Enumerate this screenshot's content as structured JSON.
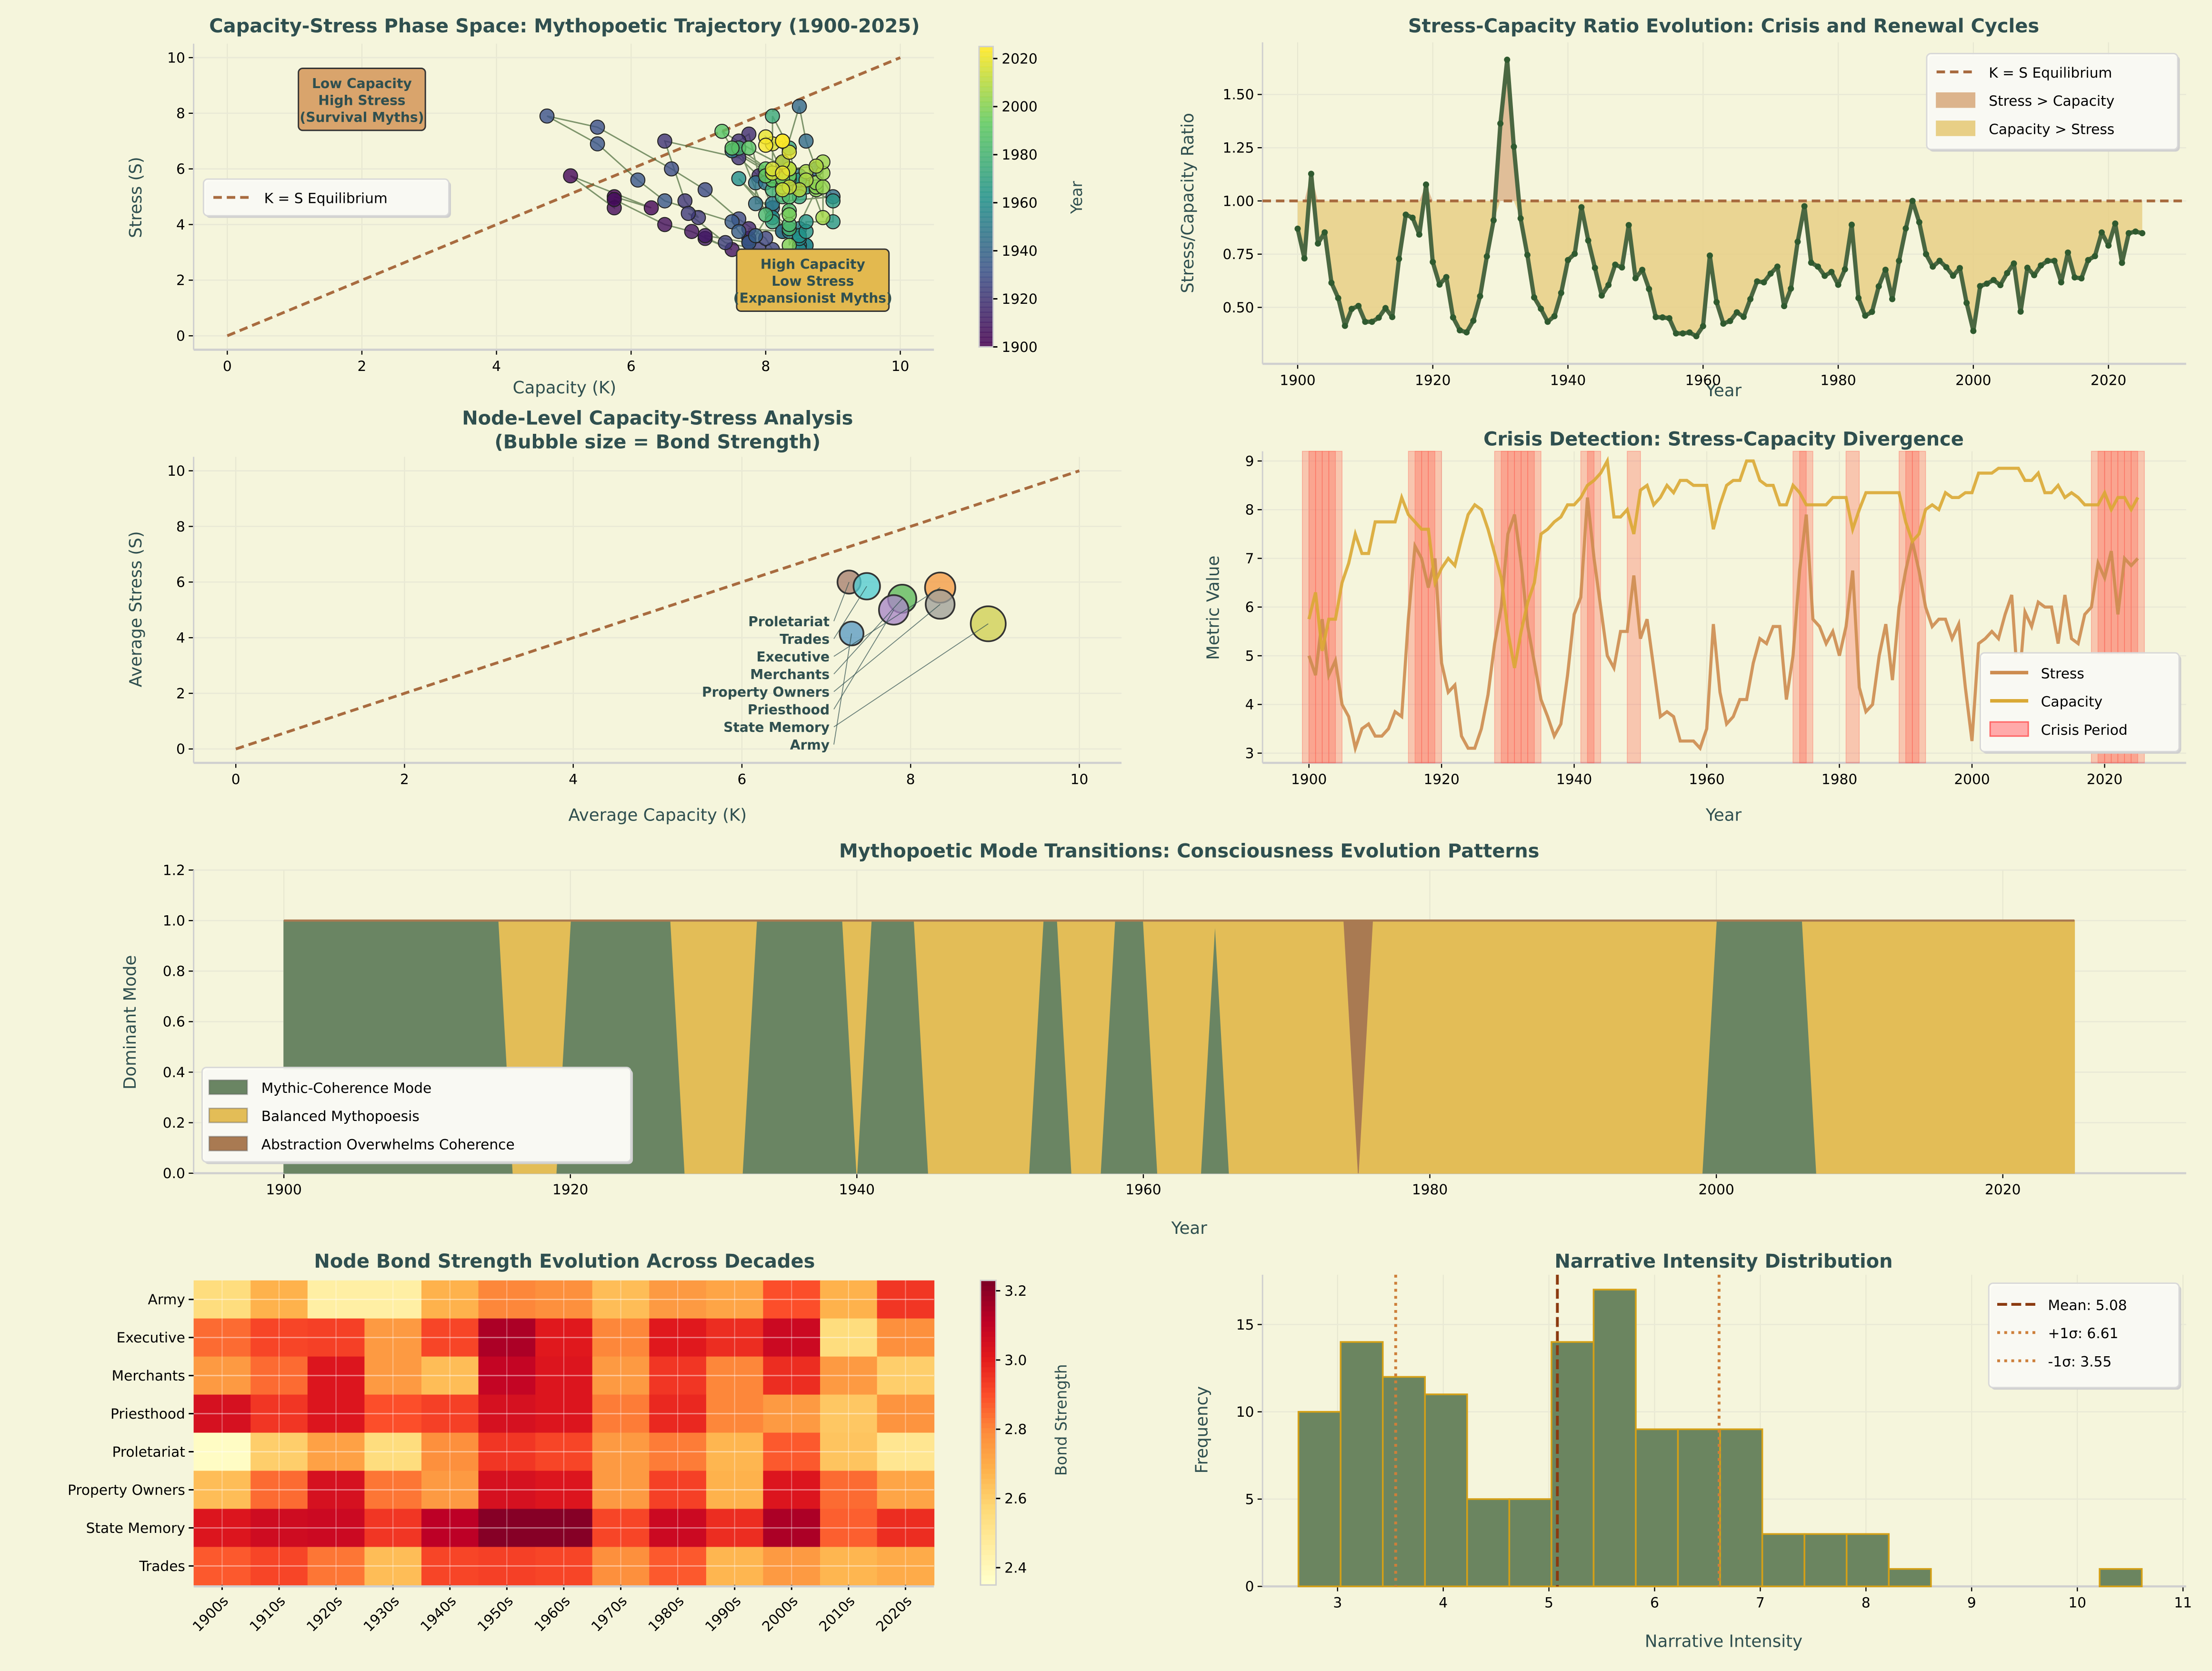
{
  "figure": {
    "background": "#f5f5dc",
    "title_color": "#2f4f4f"
  },
  "chart_data": [
    {
      "id": "phase",
      "type": "scatter",
      "title": "Capacity-Stress Phase Space: Mythopoetic Trajectory (1900-2025)",
      "xlabel": "Capacity (K)",
      "ylabel": "Stress (S)",
      "xlim": [
        -0.5,
        10.5
      ],
      "ylim": [
        -0.5,
        10.5
      ],
      "xticks": [
        0,
        2,
        4,
        6,
        8,
        10
      ],
      "yticks": [
        0,
        2,
        4,
        6,
        8,
        10
      ],
      "grid": true,
      "colorbar": {
        "label": "Year",
        "colormap": "viridis",
        "range": [
          1900,
          2025
        ],
        "ticks": [
          1900,
          1920,
          1940,
          1960,
          1980,
          2000,
          2020
        ]
      },
      "legend": {
        "placement": "center-left",
        "entries": [
          "K = S Equilibrium"
        ]
      },
      "annotations": [
        {
          "lines": [
            "Low Capacity",
            "High Stress",
            "(Survival Myths)"
          ],
          "x": 2,
          "y": 8.5,
          "color": "#d9a46c"
        },
        {
          "lines": [
            "High Capacity",
            "Low Stress",
            "(Expansionist Myths)"
          ],
          "x": 8.7,
          "y": 2,
          "color": "#e3b94f"
        }
      ],
      "equilibrium_line": {
        "x": [
          0,
          10
        ],
        "y": [
          0,
          10
        ],
        "color": "#a86b3f"
      },
      "year_start": 1900,
      "capacity": [
        5.75,
        6.3,
        5.1,
        5.75,
        5.75,
        6.5,
        6.9,
        7.5,
        7.1,
        7.1,
        7.75,
        7.75,
        7.75,
        7.75,
        8.25,
        7.9,
        7.75,
        7.6,
        7.6,
        6.5,
        6.8,
        7.0,
        6.85,
        7.4,
        7.9,
        8.1,
        8.0,
        7.6,
        7.1,
        6.6,
        5.5,
        4.75,
        5.5,
        6.1,
        6.5,
        7.5,
        7.6,
        7.75,
        7.85,
        8.1,
        8.1,
        8.25,
        8.5,
        8.6,
        8.75,
        9.0,
        7.85,
        7.85,
        8.0,
        7.5,
        8.4,
        8.5,
        8.1,
        8.25,
        8.5,
        8.35,
        8.6,
        8.6,
        8.5,
        8.5,
        8.5,
        7.6,
        8.1,
        8.5,
        8.6,
        8.6,
        9.0,
        9.0,
        8.6,
        8.5,
        8.5,
        8.1,
        8.1,
        8.5,
        8.35,
        8.1,
        8.1,
        8.1,
        8.1,
        8.25,
        8.25,
        8.25,
        7.6,
        8.0,
        8.35,
        8.35,
        8.35,
        8.35,
        8.35,
        8.35,
        7.75,
        7.35,
        7.5,
        8.0,
        8.1,
        8.0,
        8.35,
        8.25,
        8.25,
        8.35,
        8.35,
        8.75,
        8.75,
        8.75,
        8.85,
        8.85,
        8.85,
        8.85,
        8.6,
        8.6,
        8.75,
        8.35,
        8.35,
        8.5,
        8.25,
        8.35,
        8.25,
        8.1,
        8.1,
        8.1,
        8.35,
        8.0,
        8.25,
        8.25,
        8.0,
        8.25
      ],
      "stress": [
        5.0,
        4.6,
        5.75,
        4.6,
        4.9,
        4.0,
        3.75,
        3.1,
        3.5,
        3.6,
        3.35,
        3.35,
        3.5,
        3.85,
        3.75,
        5.75,
        7.25,
        7.0,
        6.4,
        7.0,
        4.85,
        4.25,
        4.4,
        3.35,
        3.1,
        3.1,
        3.5,
        4.2,
        5.25,
        6.0,
        7.5,
        7.9,
        6.9,
        5.6,
        4.85,
        4.1,
        3.75,
        3.35,
        3.6,
        4.6,
        5.85,
        6.2,
        8.25,
        7.0,
        6.0,
        5.0,
        4.75,
        5.5,
        5.5,
        6.65,
        5.35,
        5.75,
        4.75,
        3.75,
        3.85,
        3.75,
        3.25,
        3.25,
        3.25,
        3.1,
        3.5,
        5.65,
        4.25,
        3.6,
        3.75,
        4.1,
        4.1,
        4.85,
        5.35,
        5.25,
        5.6,
        5.6,
        4.1,
        5.0,
        6.75,
        7.9,
        5.75,
        5.6,
        5.25,
        5.5,
        5.0,
        5.6,
        6.75,
        4.35,
        3.85,
        4.0,
        5.0,
        5.65,
        4.5,
        6.0,
        6.75,
        7.35,
        6.75,
        6.0,
        5.6,
        5.75,
        5.75,
        5.35,
        5.65,
        4.35,
        3.25,
        5.25,
        5.35,
        5.5,
        5.35,
        5.85,
        6.25,
        4.25,
        5.9,
        5.6,
        6.1,
        6.0,
        6.0,
        5.25,
        6.25,
        5.35,
        5.25,
        5.85,
        6.0,
        6.9,
        6.6,
        7.15,
        5.85,
        7.0,
        6.85,
        7.0
      ]
    },
    {
      "id": "ratio",
      "type": "line",
      "title": "Stress-Capacity Ratio Evolution: Crisis and Renewal Cycles",
      "xlabel": "Year",
      "ylabel": "Stress/Capacity Ratio",
      "xlim": [
        1894.8,
        2031.5
      ],
      "ylim": [
        0.235,
        1.745
      ],
      "xticks": [
        1900,
        1920,
        1940,
        1960,
        1980,
        2000,
        2020
      ],
      "yticks": [
        "0.50",
        "0.75",
        "1.00",
        "1.25",
        "1.50"
      ],
      "grid": true,
      "series_color": "#4a6741",
      "equilibrium": 1.0,
      "legend": {
        "placement": "top-right",
        "entries": [
          {
            "label": "K = S Equilibrium",
            "color": "#a86b3f",
            "kind": "dash"
          },
          {
            "label": "Stress > Capacity",
            "color": "#dcb48c",
            "kind": "patch"
          },
          {
            "label": "Capacity > Stress",
            "color": "#e8cf86",
            "kind": "patch"
          }
        ]
      }
    },
    {
      "id": "bubble",
      "type": "scatter",
      "title": [
        "Node-Level Capacity-Stress Analysis",
        "(Bubble size = Bond Strength)"
      ],
      "xlabel": "Average Capacity (K)",
      "ylabel": "Average Stress (S)",
      "xlim": [
        -0.5,
        10.5
      ],
      "ylim": [
        -0.5,
        10.5
      ],
      "xticks": [
        0,
        2,
        4,
        6,
        8,
        10
      ],
      "yticks": [
        0,
        2,
        4,
        6,
        8,
        10
      ],
      "grid": true,
      "points": [
        {
          "name": "Army",
          "x": 7.3,
          "y": 4.15,
          "bond": 2.72,
          "color": "#5b9bc4"
        },
        {
          "name": "Executive",
          "x": 8.35,
          "y": 5.8,
          "bond": 2.91,
          "color": "#f59b45"
        },
        {
          "name": "Merchants",
          "x": 7.9,
          "y": 5.4,
          "bond": 2.85,
          "color": "#5cb85c"
        },
        {
          "name": "Priesthood",
          "x": 7.8,
          "y": 5.0,
          "bond": 2.89,
          "color": "#a886c6"
        },
        {
          "name": "Proletariat",
          "x": 7.27,
          "y": 6.0,
          "bond": 2.7,
          "color": "#a88070"
        },
        {
          "name": "Property Owners",
          "x": 8.35,
          "y": 5.2,
          "bond": 2.87,
          "color": "#a0a09a"
        },
        {
          "name": "State Memory",
          "x": 8.92,
          "y": 4.5,
          "bond": 3.05,
          "color": "#cfcf55"
        },
        {
          "name": "Trades",
          "x": 7.48,
          "y": 5.85,
          "bond": 2.8,
          "color": "#52ccd4"
        }
      ]
    },
    {
      "id": "crisis",
      "type": "line",
      "title": "Crisis Detection: Stress-Capacity Divergence",
      "xlabel": "Year",
      "ylabel": "Metric Value",
      "xlim": [
        1893,
        2032.3
      ],
      "ylim": [
        2.8,
        9.2
      ],
      "xticks": [
        1900,
        1920,
        1940,
        1960,
        1980,
        2000,
        2020
      ],
      "yticks": [
        3,
        4,
        5,
        6,
        7,
        8,
        9
      ],
      "grid": true,
      "series": [
        {
          "name": "Stress",
          "color": "#cd8c4f"
        },
        {
          "name": "Capacity",
          "color": "#daa934"
        }
      ],
      "crisis_label": "Crisis Period",
      "crisis_color": "#ff5a4a",
      "crisis_years": [
        1900,
        1901,
        1902,
        1903,
        1904,
        1916,
        1917,
        1918,
        1919,
        1929,
        1930,
        1931,
        1932,
        1933,
        1934,
        1942,
        1943,
        1949,
        1974,
        1975,
        1982,
        1990,
        1991,
        1992,
        2019,
        2020,
        2021,
        2022,
        2023,
        2024,
        2025
      ],
      "legend": {
        "placement": "lower-right"
      }
    },
    {
      "id": "modes",
      "type": "area",
      "title": "Mythopoetic Mode Transitions: Consciousness Evolution Patterns",
      "xlabel": "Year",
      "ylabel": "Dominant Mode",
      "xlim": [
        1893.7,
        2032.8
      ],
      "ylim": [
        0,
        1.2
      ],
      "xticks": [
        1900,
        1920,
        1940,
        1960,
        1980,
        2000,
        2020
      ],
      "yticks": [
        "0.0",
        "0.2",
        "0.4",
        "0.6",
        "0.8",
        "1.0",
        "1.2"
      ],
      "grid": true,
      "modes": [
        {
          "label": "Mythic-Coherence Mode",
          "color": "#6a8563"
        },
        {
          "label": "Balanced Mythopoesis",
          "color": "#e3bd57"
        },
        {
          "label": "Abstraction Overwhelms Coherence",
          "color": "#a97a52"
        }
      ],
      "periods": [
        {
          "mode": 0,
          "start": 1900,
          "end": 1915
        },
        {
          "mode": 1,
          "start": 1916,
          "end": 1919
        },
        {
          "mode": 0,
          "start": 1920,
          "end": 1927
        },
        {
          "mode": 1,
          "start": 1928,
          "end": 1932
        },
        {
          "mode": 0,
          "start": 1933,
          "end": 1939
        },
        {
          "mode": 1,
          "start": 1940,
          "end": 1940
        },
        {
          "mode": 0,
          "start": 1941,
          "end": 1944
        },
        {
          "mode": 1,
          "start": 1945,
          "end": 1952
        },
        {
          "mode": 0,
          "start": 1953,
          "end": 1954
        },
        {
          "mode": 1,
          "start": 1955,
          "end": 1957
        },
        {
          "mode": 0,
          "start": 1958,
          "end": 1960
        },
        {
          "mode": 1,
          "start": 1961,
          "end": 1964
        },
        {
          "mode": 0,
          "start": 1965,
          "end": 1965
        },
        {
          "mode": 1,
          "start": 1966,
          "end": 1974
        },
        {
          "mode": 2,
          "start": 1975,
          "end": 1975
        },
        {
          "mode": 1,
          "start": 1976,
          "end": 1999
        },
        {
          "mode": 0,
          "start": 2000,
          "end": 2006
        },
        {
          "mode": 1,
          "start": 2007,
          "end": 2025
        }
      ],
      "legend": {
        "placement": "lower-left"
      }
    },
    {
      "id": "heatmap",
      "type": "heatmap",
      "title": "Node Bond Strength Evolution Across Decades",
      "columns": [
        "1900s",
        "1910s",
        "1920s",
        "1930s",
        "1940s",
        "1950s",
        "1960s",
        "1970s",
        "1980s",
        "1990s",
        "2000s",
        "2010s",
        "2020s"
      ],
      "rows": [
        "Army",
        "Executive",
        "Merchants",
        "Priesthood",
        "Proletariat",
        "Property Owners",
        "State Memory",
        "Trades"
      ],
      "values": [
        [
          2.55,
          2.68,
          2.45,
          2.45,
          2.68,
          2.8,
          2.78,
          2.65,
          2.75,
          2.72,
          2.9,
          2.68,
          2.95
        ],
        [
          2.85,
          2.92,
          2.93,
          2.75,
          2.92,
          3.15,
          3.02,
          2.8,
          3.02,
          2.97,
          3.08,
          2.55,
          2.78
        ],
        [
          2.75,
          2.85,
          3.03,
          2.75,
          2.65,
          3.1,
          3.03,
          2.75,
          2.95,
          2.8,
          2.97,
          2.75,
          2.6
        ],
        [
          3.05,
          2.95,
          3.03,
          2.9,
          2.93,
          3.05,
          3.03,
          2.82,
          2.98,
          2.8,
          2.75,
          2.62,
          2.77
        ],
        [
          2.37,
          2.6,
          2.73,
          2.55,
          2.78,
          2.95,
          2.92,
          2.75,
          2.82,
          2.67,
          2.88,
          2.63,
          2.5
        ],
        [
          2.65,
          2.85,
          3.05,
          2.83,
          2.75,
          3.05,
          3.03,
          2.75,
          2.93,
          2.68,
          3.03,
          2.85,
          2.72
        ],
        [
          3.03,
          3.07,
          3.08,
          2.95,
          3.12,
          3.22,
          3.22,
          2.92,
          3.08,
          2.97,
          3.15,
          2.87,
          2.97
        ],
        [
          2.88,
          2.92,
          2.83,
          2.65,
          2.92,
          2.93,
          2.92,
          2.78,
          2.88,
          2.67,
          2.75,
          2.67,
          2.7
        ]
      ],
      "colormap": "YlOrRd",
      "colorbar": {
        "label": "Bond Strength",
        "range": [
          2.35,
          3.23
        ],
        "ticks": [
          "2.4",
          "2.6",
          "2.8",
          "3.0",
          "3.2"
        ]
      }
    },
    {
      "id": "histogram",
      "type": "bar",
      "title": "Narrative Intensity Distribution",
      "xlabel": "Narrative Intensity",
      "ylabel": "Frequency",
      "xlim": [
        2.29,
        11.03
      ],
      "ylim": [
        0,
        17.85
      ],
      "xticks": [
        3,
        4,
        5,
        6,
        7,
        8,
        9,
        10,
        11
      ],
      "yticks": [
        0,
        5,
        10,
        15
      ],
      "grid": true,
      "bin_start": 2.63,
      "bin_width": 0.399,
      "counts": [
        10,
        14,
        12,
        11,
        5,
        5,
        14,
        17,
        9,
        9,
        9,
        3,
        3,
        3,
        1,
        0,
        0,
        0,
        0,
        1
      ],
      "bar_color": "#6b8560",
      "edge_color": "#d4a017",
      "reference_lines": [
        {
          "label": "Mean: 5.08",
          "x": 5.08,
          "style": "dash",
          "color": "#8b3a0f"
        },
        {
          "label": "+1σ: 6.61",
          "x": 6.61,
          "style": "dot",
          "color": "#cd7f3a"
        },
        {
          "label": "-1σ: 3.55",
          "x": 3.55,
          "style": "dot",
          "color": "#cd7f3a"
        }
      ],
      "legend": {
        "placement": "top-right"
      }
    }
  ]
}
